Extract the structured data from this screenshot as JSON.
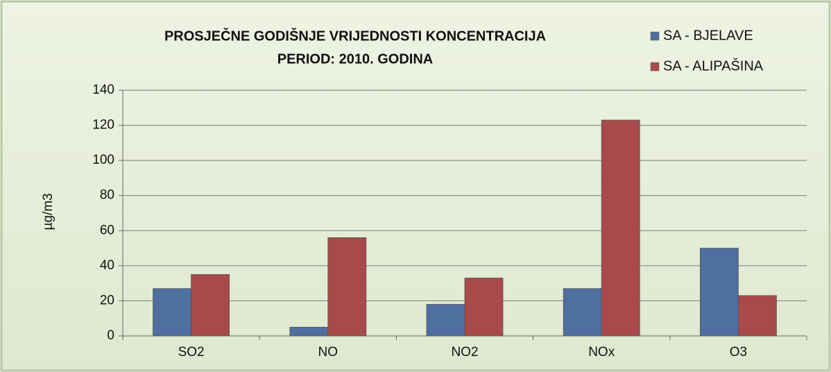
{
  "chart_data": {
    "type": "bar",
    "title": "PROSJEČNE GODIŠNJE VRIJEDNOSTI KONCENTRACIJA",
    "subtitle": "PERIOD: 2010. GODINA",
    "y_label": "µg/m3",
    "categories": [
      "SO2",
      "NO",
      "NO2",
      "NOx",
      "O3"
    ],
    "series": [
      {
        "name": "SA - BJELAVE",
        "color": "#4f6fa0",
        "values": [
          27,
          5,
          18,
          27,
          50
        ]
      },
      {
        "name": "SA - ALIPAŠINA",
        "color": "#a84a4a",
        "values": [
          35,
          56,
          33,
          123,
          23
        ]
      }
    ],
    "ylim": [
      0,
      140
    ],
    "yticks": [
      0,
      20,
      40,
      60,
      80,
      100,
      120,
      140
    ],
    "grid": true,
    "legend": "top-right"
  }
}
